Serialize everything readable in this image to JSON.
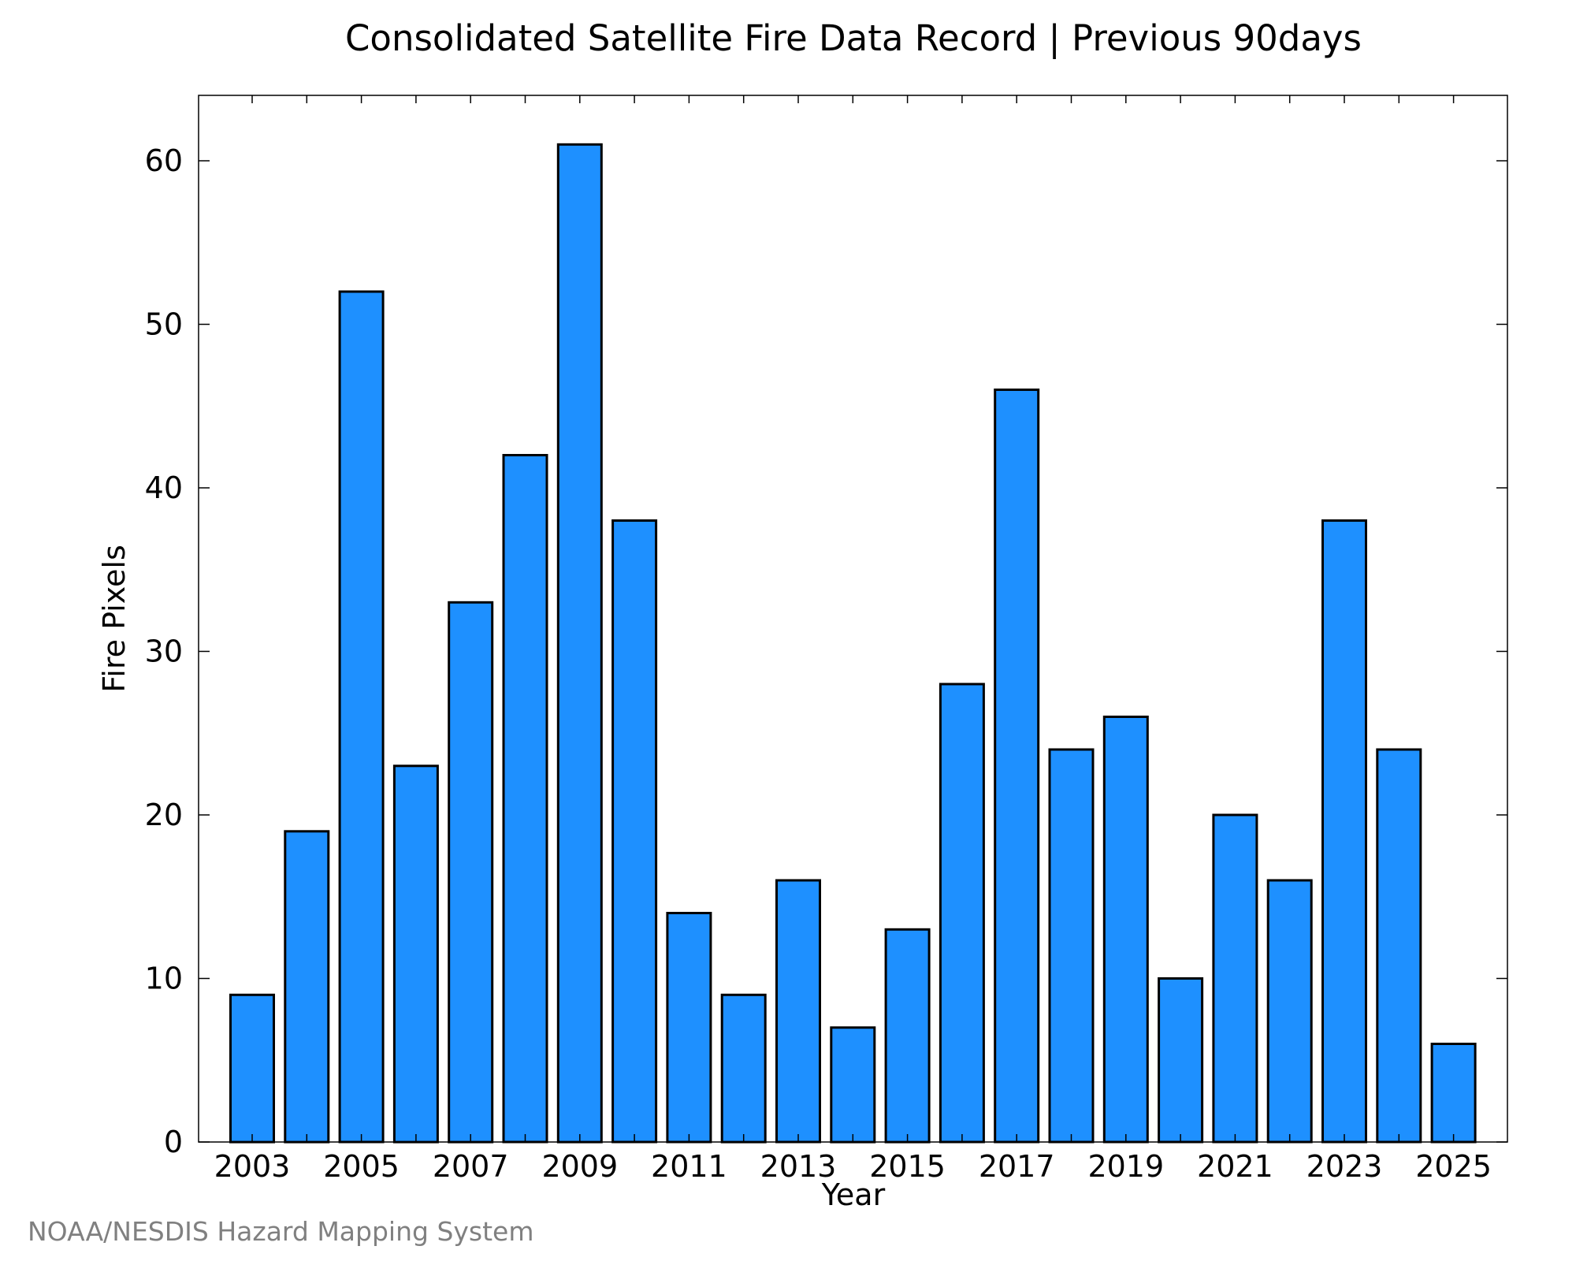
{
  "chart_data": {
    "type": "bar",
    "title": "Consolidated Satellite Fire Data Record | Previous 90days",
    "xlabel": "Year",
    "ylabel": "Fire Pixels",
    "credit": "NOAA/NESDIS Hazard Mapping System",
    "bar_color": "#1E90FF",
    "bar_edge_color": "#000000",
    "categories": [
      "2003",
      "2004",
      "2005",
      "2006",
      "2007",
      "2008",
      "2009",
      "2010",
      "2011",
      "2012",
      "2013",
      "2014",
      "2015",
      "2016",
      "2017",
      "2018",
      "2019",
      "2020",
      "2021",
      "2022",
      "2023",
      "2024",
      "2025"
    ],
    "values": [
      9,
      19,
      52,
      23,
      33,
      42,
      61,
      38,
      14,
      9,
      16,
      7,
      13,
      28,
      46,
      24,
      26,
      10,
      20,
      16,
      38,
      24,
      6
    ],
    "x_tick_labels": [
      "2003",
      "2005",
      "2007",
      "2009",
      "2011",
      "2013",
      "2015",
      "2017",
      "2019",
      "2021",
      "2023",
      "2025"
    ],
    "y_ticks": [
      0,
      10,
      20,
      30,
      40,
      50,
      60
    ],
    "ylim": [
      0,
      64
    ],
    "grid": false,
    "legend": "none"
  }
}
